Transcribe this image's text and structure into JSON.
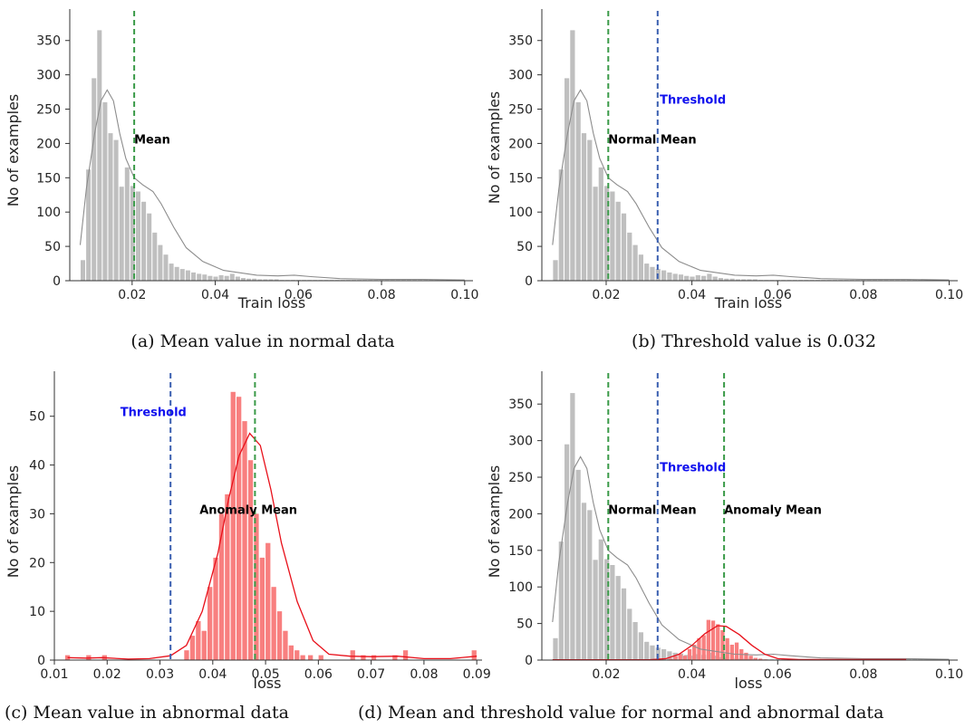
{
  "colors": {
    "normal_bar": "#bfbfbf",
    "normal_kde": "#8c8c8c",
    "anomaly_bar": "#f87f7f",
    "anomaly_kde": "#e8101a",
    "mean_line": "#3a9a48",
    "threshold_line": "#3a5fb0",
    "threshold_text": "#1010ee",
    "annotation_text": "#000000"
  },
  "chart_data": [
    {
      "type": "bar",
      "caption": "(a)   Mean value in normal data",
      "xlabel": "Train loss",
      "ylabel": "No of examples",
      "xlim": [
        0.005,
        0.102
      ],
      "ylim": [
        0,
        380
      ],
      "xticks": [
        0.02,
        0.04,
        0.06,
        0.08,
        0.1
      ],
      "xtick_labels": [
        "0.02",
        "0.04",
        "0.06",
        "0.08",
        "0.10"
      ],
      "yticks": [
        0,
        50,
        100,
        150,
        200,
        250,
        300,
        350
      ],
      "yticks_labels": [
        "0",
        "50",
        "100",
        "150",
        "200",
        "250",
        "300",
        "350"
      ],
      "bars": {
        "series": "normal",
        "bin_start": 0.0075,
        "bin_width": 0.00133,
        "values": [
          30,
          162,
          295,
          365,
          260,
          215,
          205,
          137,
          165,
          138,
          130,
          115,
          98,
          70,
          52,
          38,
          25,
          20,
          17,
          15,
          12,
          10,
          9,
          7,
          6,
          8,
          7,
          10,
          6,
          4,
          3,
          3,
          2,
          2,
          2,
          2,
          1,
          1,
          1,
          1,
          1,
          1,
          1,
          1,
          1,
          1,
          1,
          1,
          1,
          1,
          1,
          1,
          1,
          1,
          1,
          1,
          1,
          1,
          1,
          1,
          1,
          1,
          1,
          1,
          1,
          1,
          1,
          1,
          1,
          0
        ]
      },
      "kde": {
        "series": "normal",
        "points": [
          [
            0.0075,
            52
          ],
          [
            0.009,
            135
          ],
          [
            0.011,
            215
          ],
          [
            0.0125,
            262
          ],
          [
            0.014,
            278
          ],
          [
            0.0155,
            262
          ],
          [
            0.017,
            215
          ],
          [
            0.0185,
            178
          ],
          [
            0.0205,
            150
          ],
          [
            0.0225,
            140
          ],
          [
            0.025,
            130
          ],
          [
            0.027,
            112
          ],
          [
            0.03,
            78
          ],
          [
            0.033,
            48
          ],
          [
            0.037,
            28
          ],
          [
            0.042,
            15
          ],
          [
            0.05,
            8
          ],
          [
            0.055,
            7
          ],
          [
            0.059,
            8
          ],
          [
            0.063,
            6
          ],
          [
            0.07,
            3
          ],
          [
            0.08,
            2
          ],
          [
            0.09,
            2
          ],
          [
            0.1,
            1
          ]
        ]
      },
      "vlines": [
        {
          "x": 0.0205,
          "kind": "mean"
        }
      ],
      "annotations": [
        {
          "text": "Mean",
          "x": 0.0205,
          "y": 200,
          "kind": "normal"
        }
      ]
    },
    {
      "type": "bar",
      "caption": "(b) Threshold value is 0.032",
      "xlabel": "Train loss",
      "ylabel": "No of examples",
      "xlim": [
        0.005,
        0.102
      ],
      "ylim": [
        0,
        380
      ],
      "xticks": [
        0.02,
        0.04,
        0.06,
        0.08,
        0.1
      ],
      "xtick_labels": [
        "0.02",
        "0.04",
        "0.06",
        "0.08",
        "0.10"
      ],
      "yticks": [
        0,
        50,
        100,
        150,
        200,
        250,
        300,
        350
      ],
      "yticks_labels": [
        "0",
        "50",
        "100",
        "150",
        "200",
        "250",
        "300",
        "350"
      ],
      "bars": {
        "series": "normal",
        "bin_start": 0.0075,
        "bin_width": 0.00133,
        "values": [
          30,
          162,
          295,
          365,
          260,
          215,
          205,
          137,
          165,
          138,
          130,
          115,
          98,
          70,
          52,
          38,
          25,
          20,
          17,
          15,
          12,
          10,
          9,
          7,
          6,
          8,
          7,
          10,
          6,
          4,
          3,
          3,
          2,
          2,
          2,
          2,
          1,
          1,
          1,
          1,
          1,
          1,
          1,
          1,
          1,
          1,
          1,
          1,
          1,
          1,
          1,
          1,
          1,
          1,
          1,
          1,
          1,
          1,
          1,
          1,
          1,
          1,
          1,
          1,
          1,
          1,
          1,
          1,
          1,
          0
        ]
      },
      "kde": {
        "series": "normal",
        "points": [
          [
            0.0075,
            52
          ],
          [
            0.009,
            135
          ],
          [
            0.011,
            215
          ],
          [
            0.0125,
            262
          ],
          [
            0.014,
            278
          ],
          [
            0.0155,
            262
          ],
          [
            0.017,
            215
          ],
          [
            0.0185,
            178
          ],
          [
            0.0205,
            150
          ],
          [
            0.0225,
            140
          ],
          [
            0.025,
            130
          ],
          [
            0.027,
            112
          ],
          [
            0.03,
            78
          ],
          [
            0.033,
            48
          ],
          [
            0.037,
            28
          ],
          [
            0.042,
            15
          ],
          [
            0.05,
            8
          ],
          [
            0.055,
            7
          ],
          [
            0.059,
            8
          ],
          [
            0.063,
            6
          ],
          [
            0.07,
            3
          ],
          [
            0.08,
            2
          ],
          [
            0.09,
            2
          ],
          [
            0.1,
            1
          ]
        ]
      },
      "vlines": [
        {
          "x": 0.0205,
          "kind": "mean"
        },
        {
          "x": 0.032,
          "kind": "threshold"
        }
      ],
      "annotations": [
        {
          "text": "Threshold",
          "x": 0.0325,
          "y": 258,
          "kind": "threshold"
        },
        {
          "text": "Normal Mean",
          "x": 0.0205,
          "y": 200,
          "kind": "normal"
        }
      ]
    },
    {
      "type": "bar",
      "caption": "(c)   Mean value in abnormal data",
      "xlabel": "loss",
      "ylabel": "No of examples",
      "xlim": [
        0.01,
        0.091
      ],
      "ylim": [
        0,
        57
      ],
      "xticks": [
        0.01,
        0.02,
        0.03,
        0.04,
        0.05,
        0.06,
        0.07,
        0.08,
        0.09
      ],
      "xtick_labels": [
        "0.01",
        "0.02",
        "0.03",
        "0.04",
        "0.05",
        "0.06",
        "0.07",
        "0.08",
        "0.09"
      ],
      "yticks": [
        0,
        10,
        20,
        30,
        40,
        50
      ],
      "yticks_labels": [
        "0",
        "10",
        "20",
        "30",
        "40",
        "50"
      ],
      "bars": {
        "series": "anomaly",
        "bin_start": 0.0125,
        "bin_width": 0.0011,
        "values": [
          0,
          0,
          0,
          0,
          0,
          0,
          0,
          0,
          0,
          0,
          0,
          0,
          0,
          0,
          0,
          0,
          0,
          0,
          0,
          0,
          2,
          5,
          8,
          6,
          15,
          21,
          30,
          34,
          55,
          54,
          49,
          41,
          30,
          21,
          24,
          15,
          10,
          6,
          3,
          2,
          1,
          0,
          0,
          0,
          0,
          0,
          0,
          0,
          0,
          0,
          0,
          0,
          0,
          0,
          0,
          0,
          0,
          0,
          0,
          0,
          0,
          0,
          0,
          0,
          0,
          0,
          0,
          0,
          0,
          0,
          0,
          0,
          0,
          0
        ]
      },
      "extra_bars": [
        [
          0.0125,
          1
        ],
        [
          0.0165,
          1
        ],
        [
          0.0195,
          1
        ],
        [
          0.0585,
          1
        ],
        [
          0.0605,
          1
        ],
        [
          0.0665,
          2
        ],
        [
          0.0685,
          1
        ],
        [
          0.0705,
          1
        ],
        [
          0.0745,
          1
        ],
        [
          0.0765,
          2
        ],
        [
          0.0895,
          2
        ]
      ],
      "kde": {
        "series": "anomaly",
        "points": [
          [
            0.0125,
            0.5
          ],
          [
            0.016,
            0.4
          ],
          [
            0.019,
            0.5
          ],
          [
            0.024,
            0.2
          ],
          [
            0.028,
            0.3
          ],
          [
            0.032,
            0.9
          ],
          [
            0.035,
            3
          ],
          [
            0.038,
            10
          ],
          [
            0.041,
            22
          ],
          [
            0.043,
            33
          ],
          [
            0.045,
            42
          ],
          [
            0.047,
            46.5
          ],
          [
            0.049,
            44
          ],
          [
            0.051,
            35
          ],
          [
            0.053,
            24
          ],
          [
            0.056,
            12
          ],
          [
            0.059,
            4
          ],
          [
            0.062,
            1.2
          ],
          [
            0.066,
            0.8
          ],
          [
            0.07,
            0.7
          ],
          [
            0.075,
            0.8
          ],
          [
            0.08,
            0.3
          ],
          [
            0.085,
            0.3
          ],
          [
            0.09,
            0.8
          ]
        ]
      },
      "vlines": [
        {
          "x": 0.032,
          "kind": "threshold"
        },
        {
          "x": 0.048,
          "kind": "mean"
        }
      ],
      "annotations": [
        {
          "text": "Threshold",
          "x": 0.0225,
          "y": 50,
          "kind": "threshold"
        },
        {
          "text": "Anomaly Mean",
          "x": 0.0375,
          "y": 30,
          "kind": "normal"
        }
      ]
    },
    {
      "type": "bar",
      "caption": "(d) Mean and threshold value for normal and abnormal data",
      "xlabel": "loss",
      "ylabel": "No of examples",
      "xlim": [
        0.005,
        0.102
      ],
      "ylim": [
        0,
        380
      ],
      "xticks": [
        0.02,
        0.04,
        0.06,
        0.08,
        0.1
      ],
      "xtick_labels": [
        "0.02",
        "0.04",
        "0.06",
        "0.08",
        "0.10"
      ],
      "yticks": [
        0,
        50,
        100,
        150,
        200,
        250,
        300,
        350
      ],
      "yticks_labels": [
        "0",
        "50",
        "100",
        "150",
        "200",
        "250",
        "300",
        "350"
      ],
      "bars": {
        "series": "normal",
        "bin_start": 0.0075,
        "bin_width": 0.00133,
        "values": [
          30,
          162,
          295,
          365,
          260,
          215,
          205,
          137,
          165,
          138,
          130,
          115,
          98,
          70,
          52,
          38,
          25,
          20,
          17,
          15,
          12,
          10,
          9,
          7,
          6,
          8,
          7,
          10,
          6,
          4,
          3,
          3,
          2,
          2,
          2,
          2,
          1,
          1,
          1,
          1,
          1,
          1,
          1,
          1,
          1,
          1,
          1,
          1,
          1,
          1,
          1,
          1,
          1,
          1,
          1,
          1,
          1,
          1,
          1,
          1,
          1,
          1,
          1,
          1,
          1,
          1,
          1,
          1,
          1,
          0
        ]
      },
      "bars2": {
        "series": "anomaly",
        "bin_start": 0.0345,
        "bin_width": 0.0011,
        "values": [
          2,
          5,
          8,
          6,
          15,
          21,
          30,
          34,
          55,
          54,
          49,
          41,
          30,
          21,
          24,
          15,
          10,
          6,
          3,
          2,
          1
        ]
      },
      "kde": {
        "series": "normal",
        "points": [
          [
            0.0075,
            52
          ],
          [
            0.009,
            135
          ],
          [
            0.011,
            215
          ],
          [
            0.0125,
            262
          ],
          [
            0.014,
            278
          ],
          [
            0.0155,
            262
          ],
          [
            0.017,
            215
          ],
          [
            0.0185,
            178
          ],
          [
            0.0205,
            150
          ],
          [
            0.0225,
            140
          ],
          [
            0.025,
            130
          ],
          [
            0.027,
            112
          ],
          [
            0.03,
            78
          ],
          [
            0.033,
            48
          ],
          [
            0.037,
            28
          ],
          [
            0.042,
            15
          ],
          [
            0.05,
            8
          ],
          [
            0.055,
            7
          ],
          [
            0.059,
            8
          ],
          [
            0.063,
            6
          ],
          [
            0.07,
            3
          ],
          [
            0.08,
            2
          ],
          [
            0.09,
            2
          ],
          [
            0.1,
            1
          ]
        ]
      },
      "kde2": {
        "series": "anomaly",
        "points": [
          [
            0.0075,
            0.5
          ],
          [
            0.03,
            0.5
          ],
          [
            0.034,
            2
          ],
          [
            0.037,
            8
          ],
          [
            0.04,
            20
          ],
          [
            0.043,
            36
          ],
          [
            0.046,
            47
          ],
          [
            0.048,
            46
          ],
          [
            0.051,
            35
          ],
          [
            0.054,
            20
          ],
          [
            0.057,
            8
          ],
          [
            0.06,
            2
          ],
          [
            0.065,
            0.8
          ],
          [
            0.075,
            0.8
          ],
          [
            0.09,
            0.8
          ]
        ]
      },
      "vlines": [
        {
          "x": 0.0205,
          "kind": "mean"
        },
        {
          "x": 0.032,
          "kind": "threshold"
        },
        {
          "x": 0.0475,
          "kind": "mean"
        }
      ],
      "annotations": [
        {
          "text": "Threshold",
          "x": 0.0325,
          "y": 258,
          "kind": "threshold"
        },
        {
          "text": "Normal Mean",
          "x": 0.0205,
          "y": 200,
          "kind": "normal"
        },
        {
          "text": "Anomaly Mean",
          "x": 0.0475,
          "y": 200,
          "kind": "normal"
        }
      ]
    }
  ]
}
